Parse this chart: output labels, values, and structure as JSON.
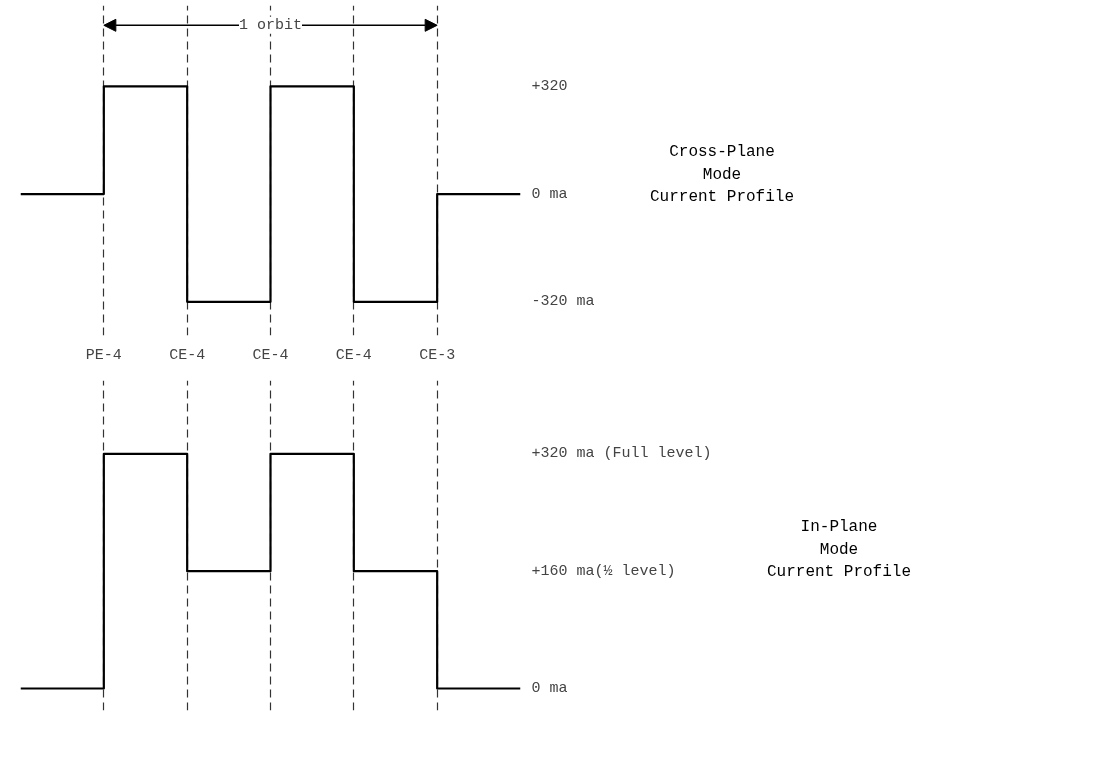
{
  "chart_data": [
    {
      "type": "step",
      "categories": [
        null,
        "PE-4",
        "CE-4",
        "CE-4",
        "CE-4",
        "CE-3",
        null
      ],
      "values": [
        0,
        320,
        -320,
        320,
        -320,
        0,
        0
      ],
      "color": "#000000",
      "ylim": [
        -420,
        560
      ],
      "yticks": [
        {
          "value": 320,
          "label": "+320"
        },
        {
          "value": 0,
          "label": "0 ma"
        },
        {
          "value": -320,
          "label": "-320 ma"
        }
      ],
      "ylabel": "Cross-Plane\nMode\nCurrent Profile",
      "annotations": [
        "1 orbit"
      ],
      "grid": "x"
    },
    {
      "type": "step",
      "categories": [
        null,
        null,
        null,
        null,
        null,
        null,
        null
      ],
      "values": [
        0,
        320,
        160,
        320,
        160,
        0,
        0
      ],
      "color": "#000000",
      "ylim": [
        -30,
        420
      ],
      "yticks": [
        {
          "value": 320,
          "label": "+320 ma (Full level)"
        },
        {
          "value": 160,
          "label": "+160 ma(½ level)"
        },
        {
          "value": 0,
          "label": "0 ma"
        }
      ],
      "ylabel": "In-Plane\nMode\nCurrent Profile",
      "tick_labels": "y",
      "grid": "x"
    }
  ]
}
